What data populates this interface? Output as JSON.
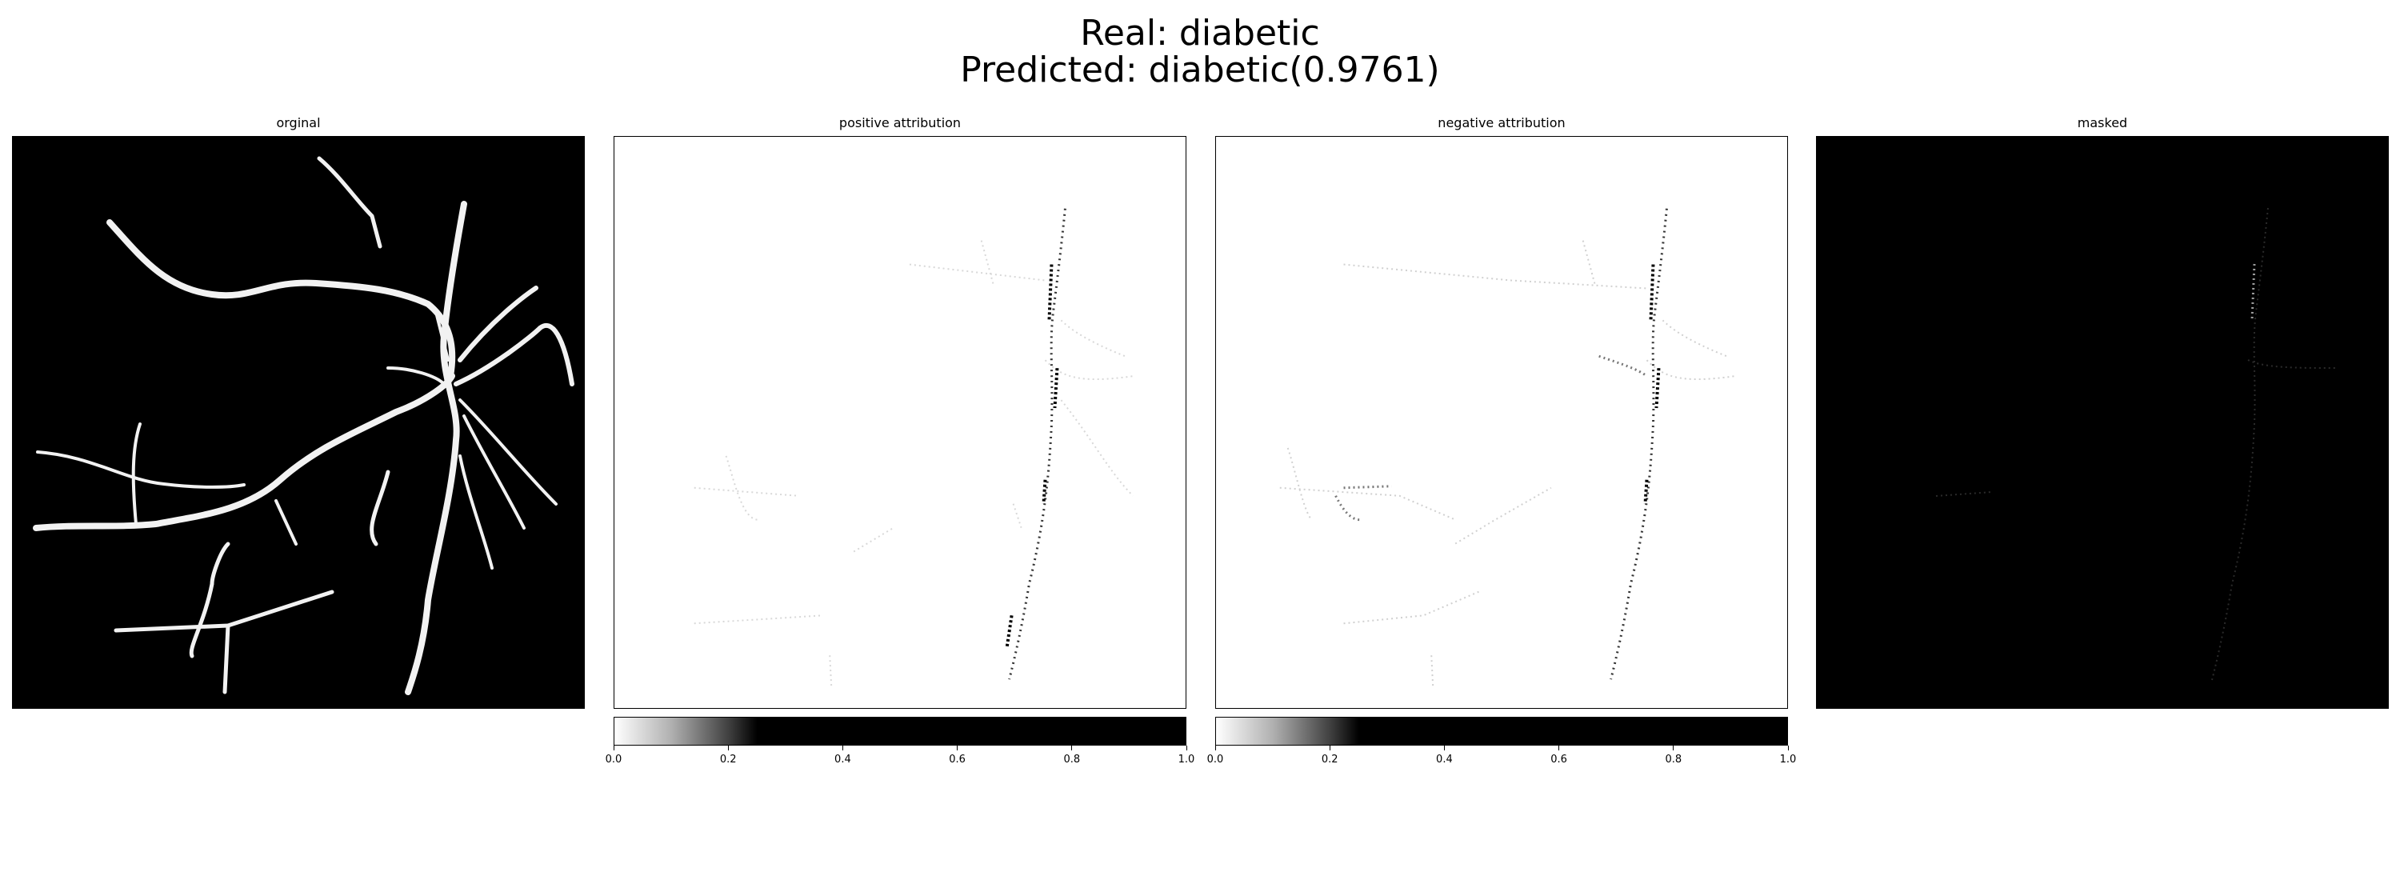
{
  "figure": {
    "title_line1": "Real: diabetic",
    "title_line2": "Predicted: diabetic(0.9761)"
  },
  "panels": [
    {
      "title": "orginal"
    },
    {
      "title": "positive attribution"
    },
    {
      "title": "negative attribution"
    },
    {
      "title": "masked"
    }
  ],
  "chart_data": {
    "type": "heatmap",
    "title": "Real: diabetic\nPredicted: diabetic(0.9761)",
    "subplots": [
      "orginal",
      "positive attribution",
      "negative attribution",
      "masked"
    ],
    "colormap": "gray_r",
    "colorbar": {
      "range": [
        0.0,
        1.0
      ],
      "ticks": [
        "0.0",
        "0.2",
        "0.4",
        "0.6",
        "0.8",
        "1.0"
      ],
      "applies_to": [
        "positive attribution",
        "negative attribution"
      ]
    },
    "grid": false
  }
}
